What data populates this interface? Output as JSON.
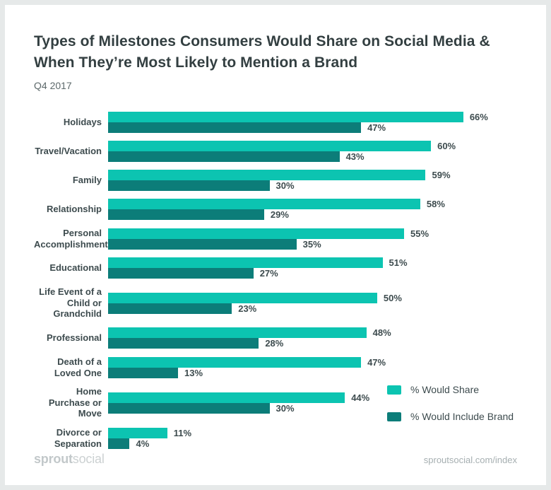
{
  "header": {
    "title_lines": [
      "Types of Milestones Consumers Would Share on Social Media &",
      "When They’re Most Likely to Mention a Brand"
    ],
    "subtitle": "Q4 2017"
  },
  "chart_data": {
    "type": "bar",
    "orientation": "horizontal",
    "title": "Types of Milestones Consumers Would Share on Social Media & When They’re Most Likely to Mention a Brand",
    "subtitle": "Q4 2017",
    "categories": [
      "Holidays",
      "Travel/Vacation",
      "Family",
      "Relationship",
      "Personal Accomplishment",
      "Educational",
      "Life Event of a Child or Grandchild",
      "Professional",
      "Death of a Loved One",
      "Home Purchase or Move",
      "Divorce or Separation"
    ],
    "series": [
      {
        "name": "% Would Share",
        "color": "#0cc4b1",
        "values": [
          66,
          60,
          59,
          58,
          55,
          51,
          50,
          48,
          47,
          44,
          11
        ]
      },
      {
        "name": "% Would Include Brand",
        "color": "#0c7d79",
        "values": [
          47,
          43,
          30,
          29,
          35,
          27,
          23,
          28,
          13,
          30,
          4
        ]
      }
    ],
    "value_suffix": "%",
    "xlim": [
      0,
      76
    ],
    "grid": false,
    "axis_visible": false,
    "legend_position": "bottom-right",
    "data_labels": true
  },
  "footer": {
    "logo_bold": "sprout",
    "logo_light": "social",
    "link": "sproutsocial.com/index"
  },
  "colors": {
    "share": "#0cc4b1",
    "brand": "#0c7d79",
    "title_text": "#333f41",
    "label_text": "#3d4b4e",
    "subtitle_text": "#5d696b",
    "footer_text": "#c2c8ca",
    "page_border": "#e6e9e9",
    "card_background": "#ffffff"
  }
}
